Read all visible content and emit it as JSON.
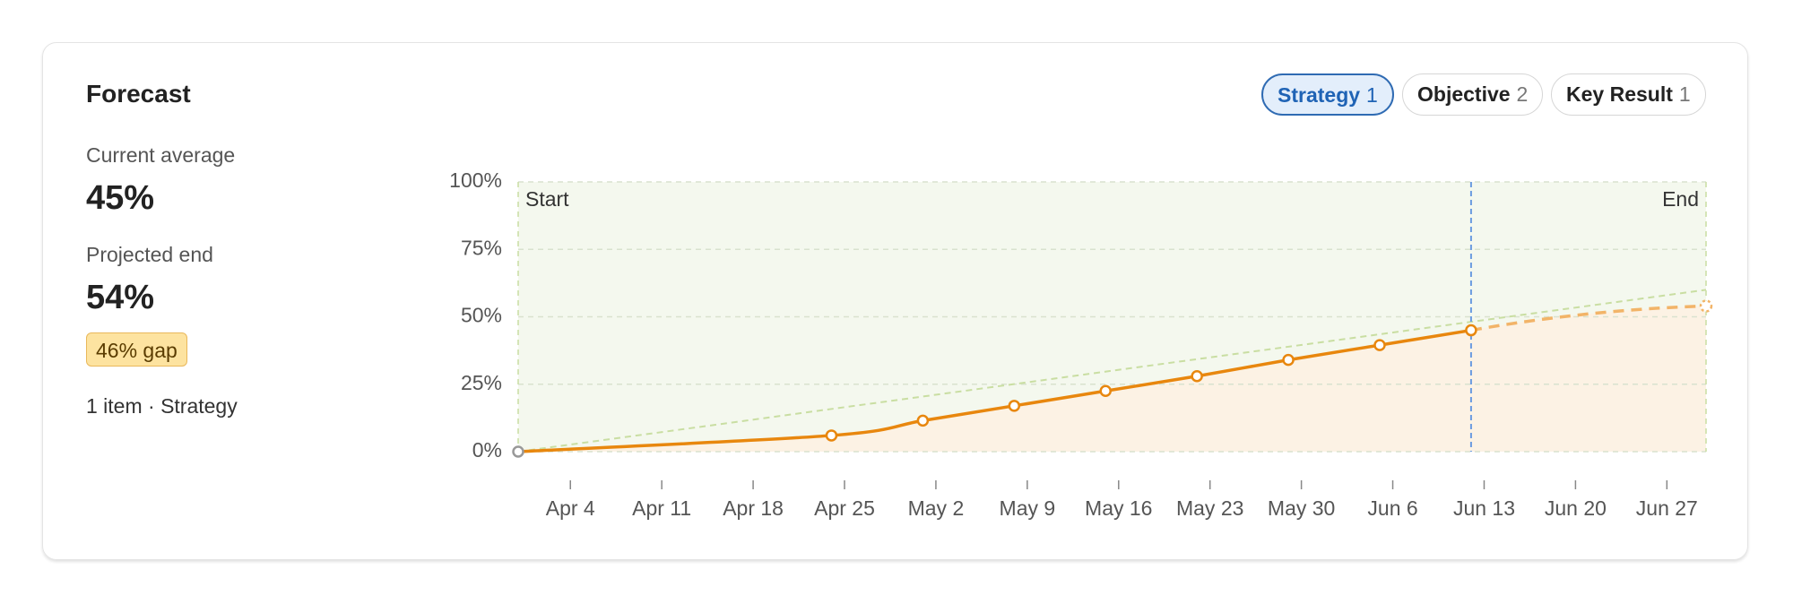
{
  "header": {
    "title": "Forecast"
  },
  "stats": {
    "current_label": "Current average",
    "current_value": "45%",
    "projected_label": "Projected end",
    "projected_value": "54%",
    "gap": "46% gap",
    "summary": "1 item · Strategy"
  },
  "chips": [
    {
      "label": "Strategy",
      "count": 1,
      "selected": true
    },
    {
      "label": "Objective",
      "count": 2,
      "selected": false
    },
    {
      "label": "Key Result",
      "count": 1,
      "selected": false
    }
  ],
  "chart_data": {
    "type": "line",
    "xlim": [
      "Mar 31",
      "Jun 30"
    ],
    "xticks": [
      "Apr 4",
      "Apr 11",
      "Apr 18",
      "Apr 25",
      "May 2",
      "May 9",
      "May 16",
      "May 23",
      "May 30",
      "Jun 6",
      "Jun 13",
      "Jun 20",
      "Jun 27"
    ],
    "ylim": [
      0,
      100
    ],
    "yticks": [
      {
        "value": 0,
        "label": "0%"
      },
      {
        "value": 25,
        "label": "25%"
      },
      {
        "value": 50,
        "label": "50%"
      },
      {
        "value": 75,
        "label": "75%"
      },
      {
        "value": 100,
        "label": "100%"
      }
    ],
    "grid": true,
    "annotations": [
      "Start",
      "End"
    ],
    "vlines": [
      {
        "x": "Jun 12",
        "color": "#6a9be0"
      }
    ],
    "series": [
      {
        "color": "#e8870e",
        "style": "solid",
        "x": [
          "Mar 31",
          "Apr 24",
          "May 1",
          "May 8",
          "May 15",
          "May 22",
          "May 29",
          "Jun 5",
          "Jun 12"
        ],
        "values": [
          0,
          6,
          11.5,
          17,
          22.5,
          28,
          34,
          39.5,
          45
        ]
      },
      {
        "color": "#f2b468",
        "style": "dashed",
        "x": [
          "Jun 12",
          "Jun 30"
        ],
        "values": [
          45,
          54
        ]
      },
      {
        "color": "#c9dea2",
        "style": "dashed",
        "x": [
          "Mar 31",
          "Jun 30"
        ],
        "values": [
          0,
          60
        ]
      }
    ]
  }
}
